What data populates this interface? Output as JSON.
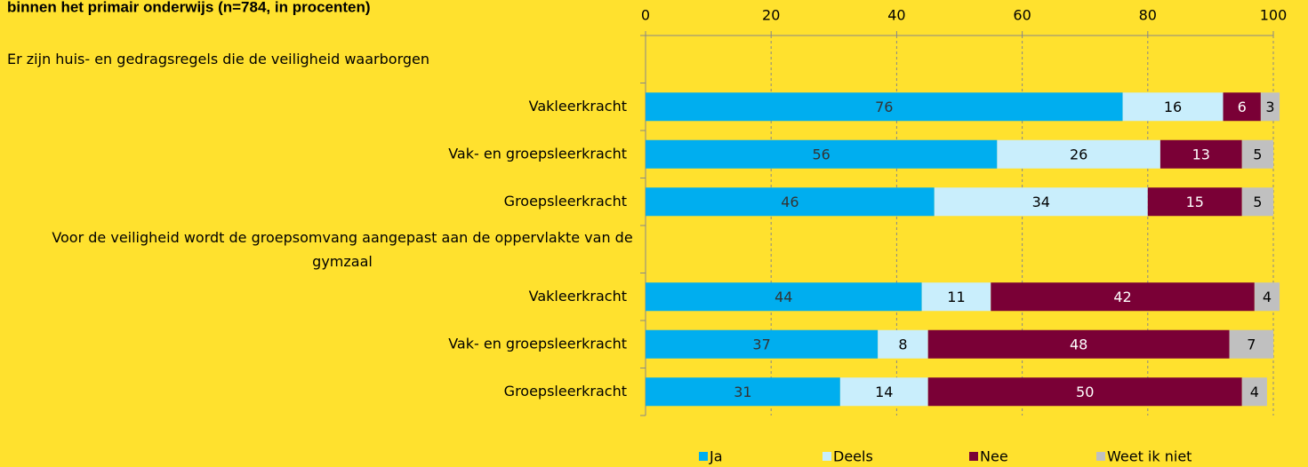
{
  "chart_data": {
    "type": "stacked_bar_horizontal",
    "title": "binnen het primair onderwijs (n=784, in procenten)",
    "categories": [
      "Er zijn huis- en gedragsregels die de veiligheid  waarborgen",
      "Vakleerkracht",
      "Vak- en groepsleerkracht",
      "Groepsleerkracht",
      "Voor de veiligheid wordt de groepsomvang aangepast aan de oppervlakte van de gymzaal",
      "Vakleerkracht",
      "Vak- en groepsleerkracht",
      "Groepsleerkracht"
    ],
    "series": [
      {
        "name": "Ja",
        "color": "#00aeef",
        "label_color": "#333333",
        "values": [
          null,
          76,
          56,
          46,
          null,
          44,
          37,
          31
        ]
      },
      {
        "name": "Deels",
        "color": "#c9eefc",
        "label_color": "#000000",
        "values": [
          null,
          16,
          26,
          34,
          null,
          11,
          8,
          14
        ]
      },
      {
        "name": "Nee",
        "color": "#7a0036",
        "label_color": "#ffffff",
        "values": [
          null,
          6,
          13,
          15,
          null,
          42,
          48,
          50
        ]
      },
      {
        "name": "Weet ik niet",
        "color": "#c0c0c0",
        "label_color": "#000000",
        "values": [
          null,
          3,
          5,
          5,
          null,
          4,
          7,
          4
        ]
      }
    ],
    "xlim": [
      0,
      100
    ],
    "xticks": [
      0,
      20,
      40,
      60,
      80,
      100
    ],
    "grid": true,
    "legend": "bottom"
  }
}
